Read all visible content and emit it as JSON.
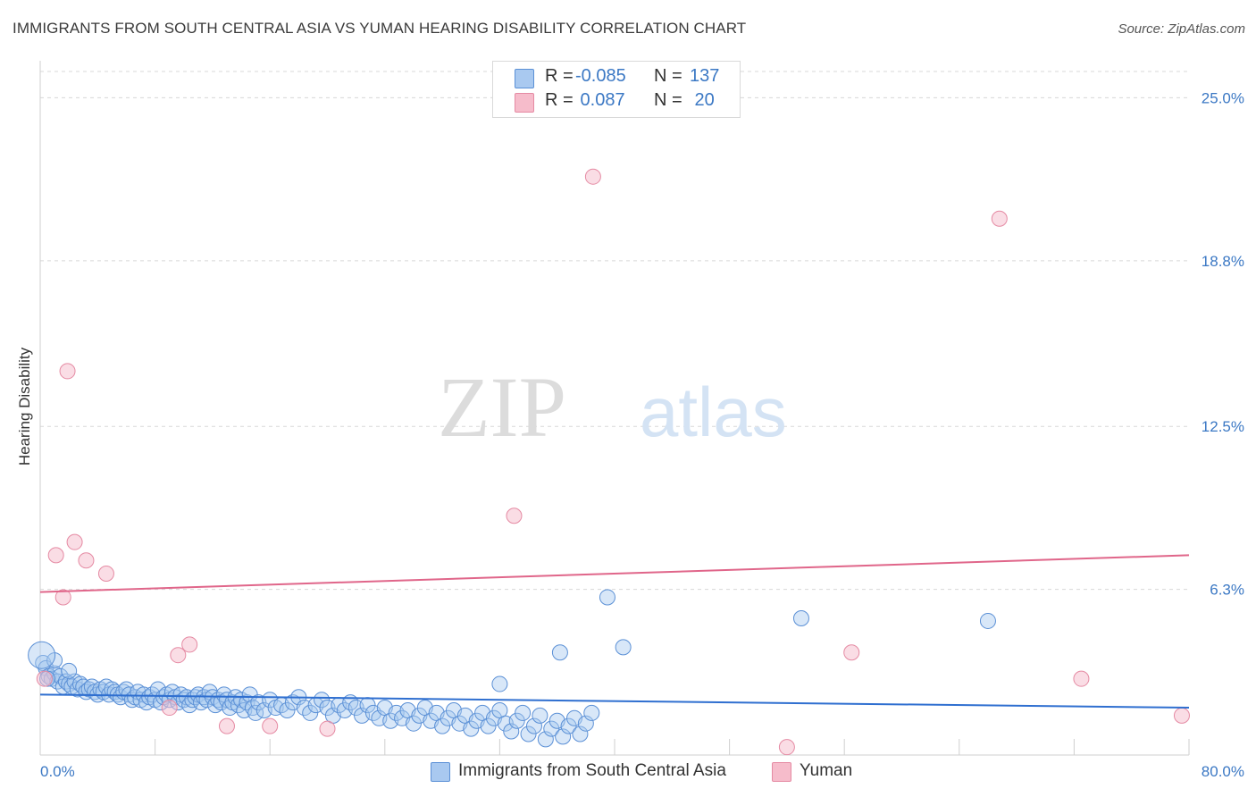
{
  "title": "IMMIGRANTS FROM SOUTH CENTRAL ASIA VS YUMAN HEARING DISABILITY CORRELATION CHART",
  "source": "Source: ZipAtlas.com",
  "watermark": {
    "zip": "ZIP",
    "atlas": "atlas"
  },
  "colors": {
    "blue_fill": "#a9c9f0",
    "blue_stroke": "#5b90d6",
    "blue_line": "#2f6fd0",
    "pink_fill": "#f6bccb",
    "pink_stroke": "#e58aa3",
    "pink_line": "#e0668a",
    "axis_text": "#3b78c4",
    "grid": "#d8d8d8"
  },
  "legend": {
    "rows": [
      {
        "r_label": "R =",
        "r_value": "-0.085",
        "n_label": "N =",
        "n_value": "137"
      },
      {
        "r_label": "R =",
        "r_value": " 0.087",
        "n_label": "N =",
        "n_value": " 20"
      }
    ]
  },
  "bottom_legend": [
    {
      "label": "Immigrants from South Central Asia"
    },
    {
      "label": "Yuman"
    }
  ],
  "chart_data": {
    "type": "scatter",
    "ylabel": "Hearing Disability",
    "xlabel": "",
    "xlim": [
      0,
      80
    ],
    "ylim": [
      0,
      26
    ],
    "x_tick_labels": [
      {
        "value": 0,
        "label": "0.0%"
      },
      {
        "value": 80,
        "label": "80.0%"
      }
    ],
    "y_tick_labels": [
      {
        "value": 6.3,
        "label": "6.3%"
      },
      {
        "value": 12.5,
        "label": "12.5%"
      },
      {
        "value": 18.8,
        "label": "18.8%"
      },
      {
        "value": 25.0,
        "label": "25.0%"
      }
    ],
    "grid": true,
    "series": [
      {
        "name": "Immigrants from South Central Asia",
        "color": "#a9c9f0",
        "trend": {
          "x": [
            0,
            80
          ],
          "y": [
            2.3,
            1.8
          ]
        },
        "points": [
          [
            0.2,
            3.5
          ],
          [
            0.4,
            3.3
          ],
          [
            0.6,
            3.0
          ],
          [
            0.8,
            2.9
          ],
          [
            1.0,
            3.1
          ],
          [
            1.2,
            2.8
          ],
          [
            1.4,
            3.0
          ],
          [
            1.6,
            2.6
          ],
          [
            1.8,
            2.8
          ],
          [
            2.0,
            2.7
          ],
          [
            2.2,
            2.6
          ],
          [
            2.4,
            2.8
          ],
          [
            2.6,
            2.5
          ],
          [
            2.8,
            2.7
          ],
          [
            3.0,
            2.6
          ],
          [
            3.2,
            2.4
          ],
          [
            3.4,
            2.5
          ],
          [
            3.6,
            2.6
          ],
          [
            3.8,
            2.4
          ],
          [
            4.0,
            2.3
          ],
          [
            4.2,
            2.5
          ],
          [
            4.4,
            2.4
          ],
          [
            4.6,
            2.6
          ],
          [
            4.8,
            2.3
          ],
          [
            5.0,
            2.5
          ],
          [
            5.2,
            2.4
          ],
          [
            5.4,
            2.3
          ],
          [
            5.6,
            2.2
          ],
          [
            5.8,
            2.4
          ],
          [
            6.0,
            2.5
          ],
          [
            6.2,
            2.3
          ],
          [
            6.4,
            2.1
          ],
          [
            6.6,
            2.2
          ],
          [
            6.8,
            2.4
          ],
          [
            7.0,
            2.1
          ],
          [
            7.2,
            2.3
          ],
          [
            7.4,
            2.0
          ],
          [
            7.6,
            2.2
          ],
          [
            7.8,
            2.3
          ],
          [
            8.0,
            2.1
          ],
          [
            8.2,
            2.5
          ],
          [
            8.4,
            2.0
          ],
          [
            8.6,
            2.2
          ],
          [
            8.8,
            2.3
          ],
          [
            9.0,
            2.1
          ],
          [
            9.2,
            2.4
          ],
          [
            9.4,
            2.2
          ],
          [
            9.6,
            2.0
          ],
          [
            9.8,
            2.3
          ],
          [
            10.0,
            2.1
          ],
          [
            10.2,
            2.2
          ],
          [
            10.4,
            1.9
          ],
          [
            10.6,
            2.1
          ],
          [
            10.8,
            2.2
          ],
          [
            11.0,
            2.3
          ],
          [
            11.2,
            2.0
          ],
          [
            11.4,
            2.2
          ],
          [
            11.6,
            2.1
          ],
          [
            11.8,
            2.4
          ],
          [
            12.0,
            2.2
          ],
          [
            12.2,
            1.9
          ],
          [
            12.4,
            2.1
          ],
          [
            12.6,
            2.0
          ],
          [
            12.8,
            2.3
          ],
          [
            13.0,
            2.1
          ],
          [
            13.2,
            1.8
          ],
          [
            13.4,
            2.0
          ],
          [
            13.6,
            2.2
          ],
          [
            13.8,
            1.9
          ],
          [
            14.0,
            2.1
          ],
          [
            14.2,
            1.7
          ],
          [
            14.4,
            2.0
          ],
          [
            14.6,
            2.3
          ],
          [
            14.8,
            1.8
          ],
          [
            15.0,
            1.6
          ],
          [
            15.2,
            2.0
          ],
          [
            15.6,
            1.7
          ],
          [
            16.0,
            2.1
          ],
          [
            16.4,
            1.8
          ],
          [
            16.8,
            1.9
          ],
          [
            17.2,
            1.7
          ],
          [
            17.6,
            2.0
          ],
          [
            18.0,
            2.2
          ],
          [
            18.4,
            1.8
          ],
          [
            18.8,
            1.6
          ],
          [
            19.2,
            1.9
          ],
          [
            19.6,
            2.1
          ],
          [
            20.0,
            1.8
          ],
          [
            20.4,
            1.5
          ],
          [
            20.8,
            1.9
          ],
          [
            21.2,
            1.7
          ],
          [
            21.6,
            2.0
          ],
          [
            22.0,
            1.8
          ],
          [
            22.4,
            1.5
          ],
          [
            22.8,
            1.9
          ],
          [
            23.2,
            1.6
          ],
          [
            23.6,
            1.4
          ],
          [
            24.0,
            1.8
          ],
          [
            24.4,
            1.3
          ],
          [
            24.8,
            1.6
          ],
          [
            25.2,
            1.4
          ],
          [
            25.6,
            1.7
          ],
          [
            26.0,
            1.2
          ],
          [
            26.4,
            1.5
          ],
          [
            26.8,
            1.8
          ],
          [
            27.2,
            1.3
          ],
          [
            27.6,
            1.6
          ],
          [
            28.0,
            1.1
          ],
          [
            28.4,
            1.4
          ],
          [
            28.8,
            1.7
          ],
          [
            29.2,
            1.2
          ],
          [
            29.6,
            1.5
          ],
          [
            30.0,
            1.0
          ],
          [
            30.4,
            1.3
          ],
          [
            30.8,
            1.6
          ],
          [
            31.2,
            1.1
          ],
          [
            31.6,
            1.4
          ],
          [
            32.0,
            1.7
          ],
          [
            32.4,
            1.2
          ],
          [
            32.8,
            0.9
          ],
          [
            33.2,
            1.3
          ],
          [
            33.6,
            1.6
          ],
          [
            34.0,
            0.8
          ],
          [
            34.4,
            1.1
          ],
          [
            34.8,
            1.5
          ],
          [
            35.2,
            0.6
          ],
          [
            35.6,
            1.0
          ],
          [
            36.0,
            1.3
          ],
          [
            36.4,
            0.7
          ],
          [
            36.8,
            1.1
          ],
          [
            37.2,
            1.4
          ],
          [
            37.6,
            0.8
          ],
          [
            38.0,
            1.2
          ],
          [
            38.4,
            1.6
          ],
          [
            2.0,
            3.2
          ],
          [
            1.0,
            3.6
          ],
          [
            0.5,
            2.9
          ]
        ],
        "outliers": [
          [
            39.5,
            6.0
          ],
          [
            66.0,
            5.1
          ],
          [
            53.0,
            5.2
          ],
          [
            40.6,
            4.1
          ],
          [
            36.2,
            3.9
          ],
          [
            32.0,
            2.7
          ]
        ]
      },
      {
        "name": "Yuman",
        "color": "#f6bccb",
        "trend": {
          "x": [
            0,
            80
          ],
          "y": [
            6.2,
            7.6
          ]
        },
        "points": [
          [
            0.3,
            2.9
          ],
          [
            1.1,
            7.6
          ],
          [
            1.6,
            6.0
          ],
          [
            1.9,
            14.6
          ],
          [
            2.4,
            8.1
          ],
          [
            3.2,
            7.4
          ],
          [
            4.6,
            6.9
          ],
          [
            9.0,
            1.8
          ],
          [
            9.6,
            3.8
          ],
          [
            10.4,
            4.2
          ],
          [
            13.0,
            1.1
          ],
          [
            16.0,
            1.1
          ],
          [
            20.0,
            1.0
          ],
          [
            33.0,
            9.1
          ],
          [
            38.5,
            22.0
          ],
          [
            52.0,
            0.3
          ],
          [
            56.5,
            3.9
          ],
          [
            66.8,
            20.4
          ],
          [
            72.5,
            2.9
          ],
          [
            79.5,
            1.5
          ]
        ]
      }
    ]
  }
}
